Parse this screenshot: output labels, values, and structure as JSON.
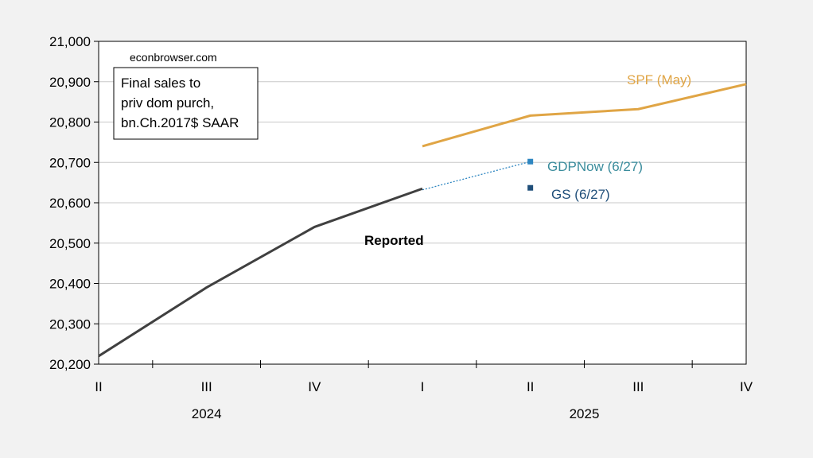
{
  "chart_data": {
    "type": "line",
    "source_note": "econbrowser.com",
    "annotation_lines": [
      "Final sales to",
      "priv dom purch,",
      "bn.Ch.2017$ SAAR"
    ],
    "x_categories": [
      "II",
      "III",
      "IV",
      "I",
      "II",
      "III",
      "IV"
    ],
    "year_labels": [
      {
        "label": "2024",
        "category_index": 1
      },
      {
        "label": "2025",
        "category_index": 4.5
      }
    ],
    "ylim": [
      20200,
      21000
    ],
    "yticks": [
      20200,
      20300,
      20400,
      20500,
      20600,
      20700,
      20800,
      20900,
      21000
    ],
    "ytick_labels": [
      "20,200",
      "20,300",
      "20,400",
      "20,500",
      "20,600",
      "20,700",
      "20,800",
      "20,900",
      "21,000"
    ],
    "grid": "horizontal",
    "colors": {
      "reported": "#404040",
      "spf": "#e0a545",
      "gdpnow": "#2e86c1",
      "gdpnow_label": "#3a8c9c",
      "gs": "#1f4e79",
      "gs_label": "#1f4e79",
      "background": "#f2f2f2",
      "plot_bg": "#ffffff"
    },
    "series": [
      {
        "name": "Reported",
        "style": "line",
        "x": [
          0,
          1,
          2,
          3
        ],
        "values": [
          20220,
          20390,
          20540,
          20635
        ]
      },
      {
        "name": "SPF (May)",
        "style": "line",
        "x": [
          3,
          4,
          5,
          6
        ],
        "values": [
          20740,
          20816,
          20832,
          20894
        ]
      },
      {
        "name": "GDPNow (6/27)",
        "style": "marker",
        "x": [
          4
        ],
        "values": [
          20702
        ]
      },
      {
        "name": "GS (6/27)",
        "style": "marker",
        "x": [
          4
        ],
        "values": [
          20637
        ]
      }
    ],
    "connector": {
      "from": {
        "x": 3,
        "value": 20632
      },
      "to": {
        "x": 4,
        "value": 20702
      },
      "style": "dotted",
      "color": "#2e86c1"
    }
  }
}
